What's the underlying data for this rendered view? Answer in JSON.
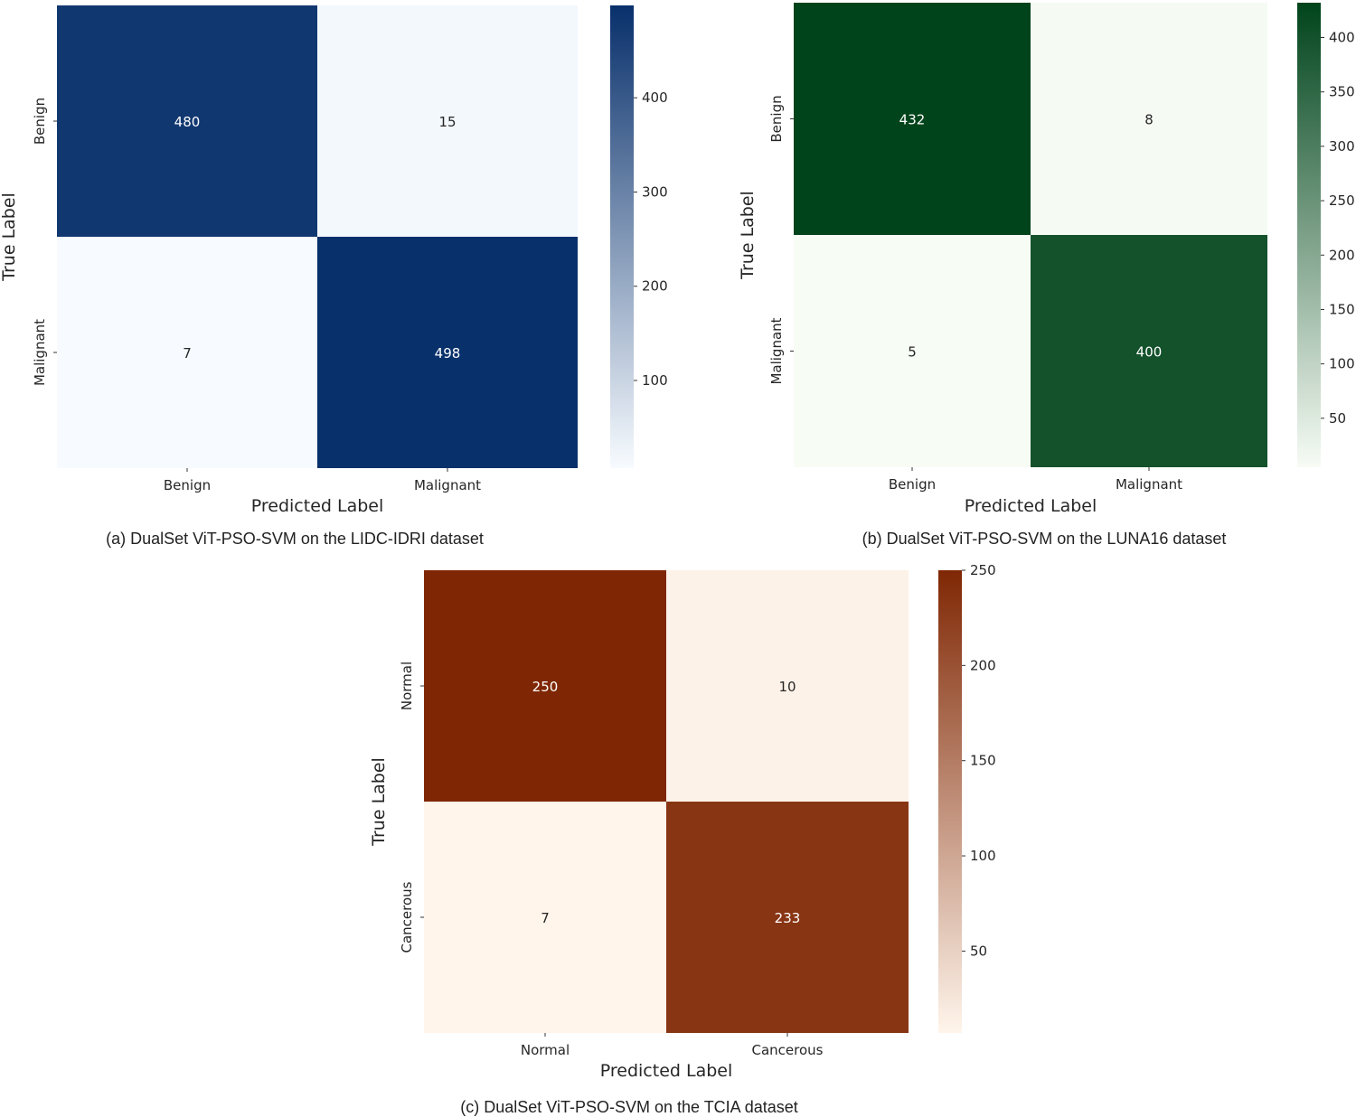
{
  "figure": {
    "captions": [
      "(a) DualSet ViT-PSO-SVM on the LIDC-IDRI dataset",
      "(b) DualSet ViT-PSO-SVM on the LUNA16 dataset",
      "(c) DualSet ViT-PSO-SVM on the TCIA dataset"
    ]
  },
  "chart_data": [
    {
      "type": "heatmap",
      "title": "",
      "xlabel": "Predicted Label",
      "ylabel": "True Label",
      "x_categories": [
        "Benign",
        "Malignant"
      ],
      "y_categories": [
        "Benign",
        "Malignant"
      ],
      "values": [
        [
          480,
          15
        ],
        [
          7,
          498
        ]
      ],
      "colormap": "Blues",
      "colors": [
        "#f7fbff",
        "#08306b"
      ],
      "colorbar_range": [
        7,
        498
      ],
      "colorbar_ticks": [
        100,
        200,
        300,
        400
      ]
    },
    {
      "type": "heatmap",
      "title": "",
      "xlabel": "Predicted Label",
      "ylabel": "True Label",
      "x_categories": [
        "Benign",
        "Malignant"
      ],
      "y_categories": [
        "Benign",
        "Malignant"
      ],
      "values": [
        [
          432,
          8
        ],
        [
          5,
          400
        ]
      ],
      "colormap": "Greens",
      "colors": [
        "#f7fcf5",
        "#00441b"
      ],
      "colorbar_range": [
        5,
        432
      ],
      "colorbar_ticks": [
        50,
        100,
        150,
        200,
        250,
        300,
        350,
        400
      ]
    },
    {
      "type": "heatmap",
      "title": "",
      "xlabel": "Predicted Label",
      "ylabel": "True Label",
      "x_categories": [
        "Normal",
        "Cancerous"
      ],
      "y_categories": [
        "Normal",
        "Cancerous"
      ],
      "values": [
        [
          250,
          10
        ],
        [
          7,
          233
        ]
      ],
      "colormap": "Oranges",
      "colors": [
        "#fff5eb",
        "#7f2704"
      ],
      "colorbar_range": [
        7,
        250
      ],
      "colorbar_ticks": [
        50,
        100,
        150,
        200,
        250
      ]
    }
  ]
}
